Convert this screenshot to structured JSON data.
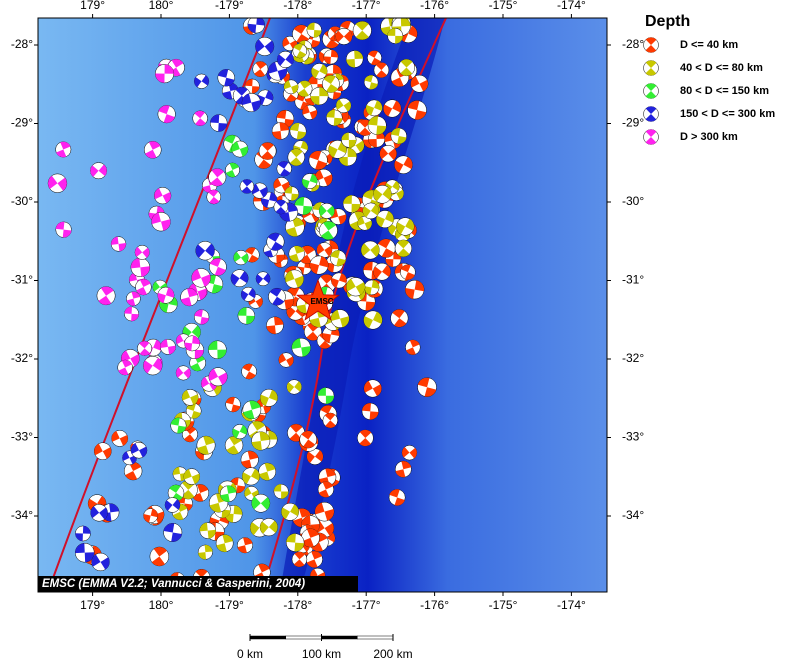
{
  "map": {
    "lon_ticks": [
      {
        "value": 179,
        "label": "179°"
      },
      {
        "value": 180,
        "label": "180°"
      },
      {
        "value": -179,
        "label": "-179°"
      },
      {
        "value": -178,
        "label": "-178°"
      },
      {
        "value": -177,
        "label": "-177°"
      },
      {
        "value": -176,
        "label": "-176°"
      },
      {
        "value": -175,
        "label": "-175°"
      },
      {
        "value": -174,
        "label": "-174°"
      }
    ],
    "lat_ticks": [
      {
        "value": -28,
        "label": "-28°"
      },
      {
        "value": -29,
        "label": "-29°"
      },
      {
        "value": -30,
        "label": "-30°"
      },
      {
        "value": -31,
        "label": "-31°"
      },
      {
        "value": -32,
        "label": "-32°"
      },
      {
        "value": -33,
        "label": "-33°"
      },
      {
        "value": -34,
        "label": "-34°"
      }
    ],
    "legend": {
      "title": "Depth",
      "items": [
        {
          "label": "D <= 40 km",
          "color": "#ff3a00"
        },
        {
          "label": "40 < D <= 80 km",
          "color": "#c8c800"
        },
        {
          "label": "80 < D <= 150 km",
          "color": "#33ee33"
        },
        {
          "label": "150 < D <= 300 km",
          "color": "#2222dd"
        },
        {
          "label": "D > 300 km",
          "color": "#ff22ee"
        }
      ]
    },
    "credit": "EMSC (EMMA V2.2; Vannucci & Gasperini, 2004)",
    "event_label": "EMSC",
    "scale_bar": [
      {
        "value": 0,
        "label": "0 km"
      },
      {
        "value": 100,
        "label": "100 km"
      },
      {
        "value": 200,
        "label": "200 km"
      }
    ]
  }
}
